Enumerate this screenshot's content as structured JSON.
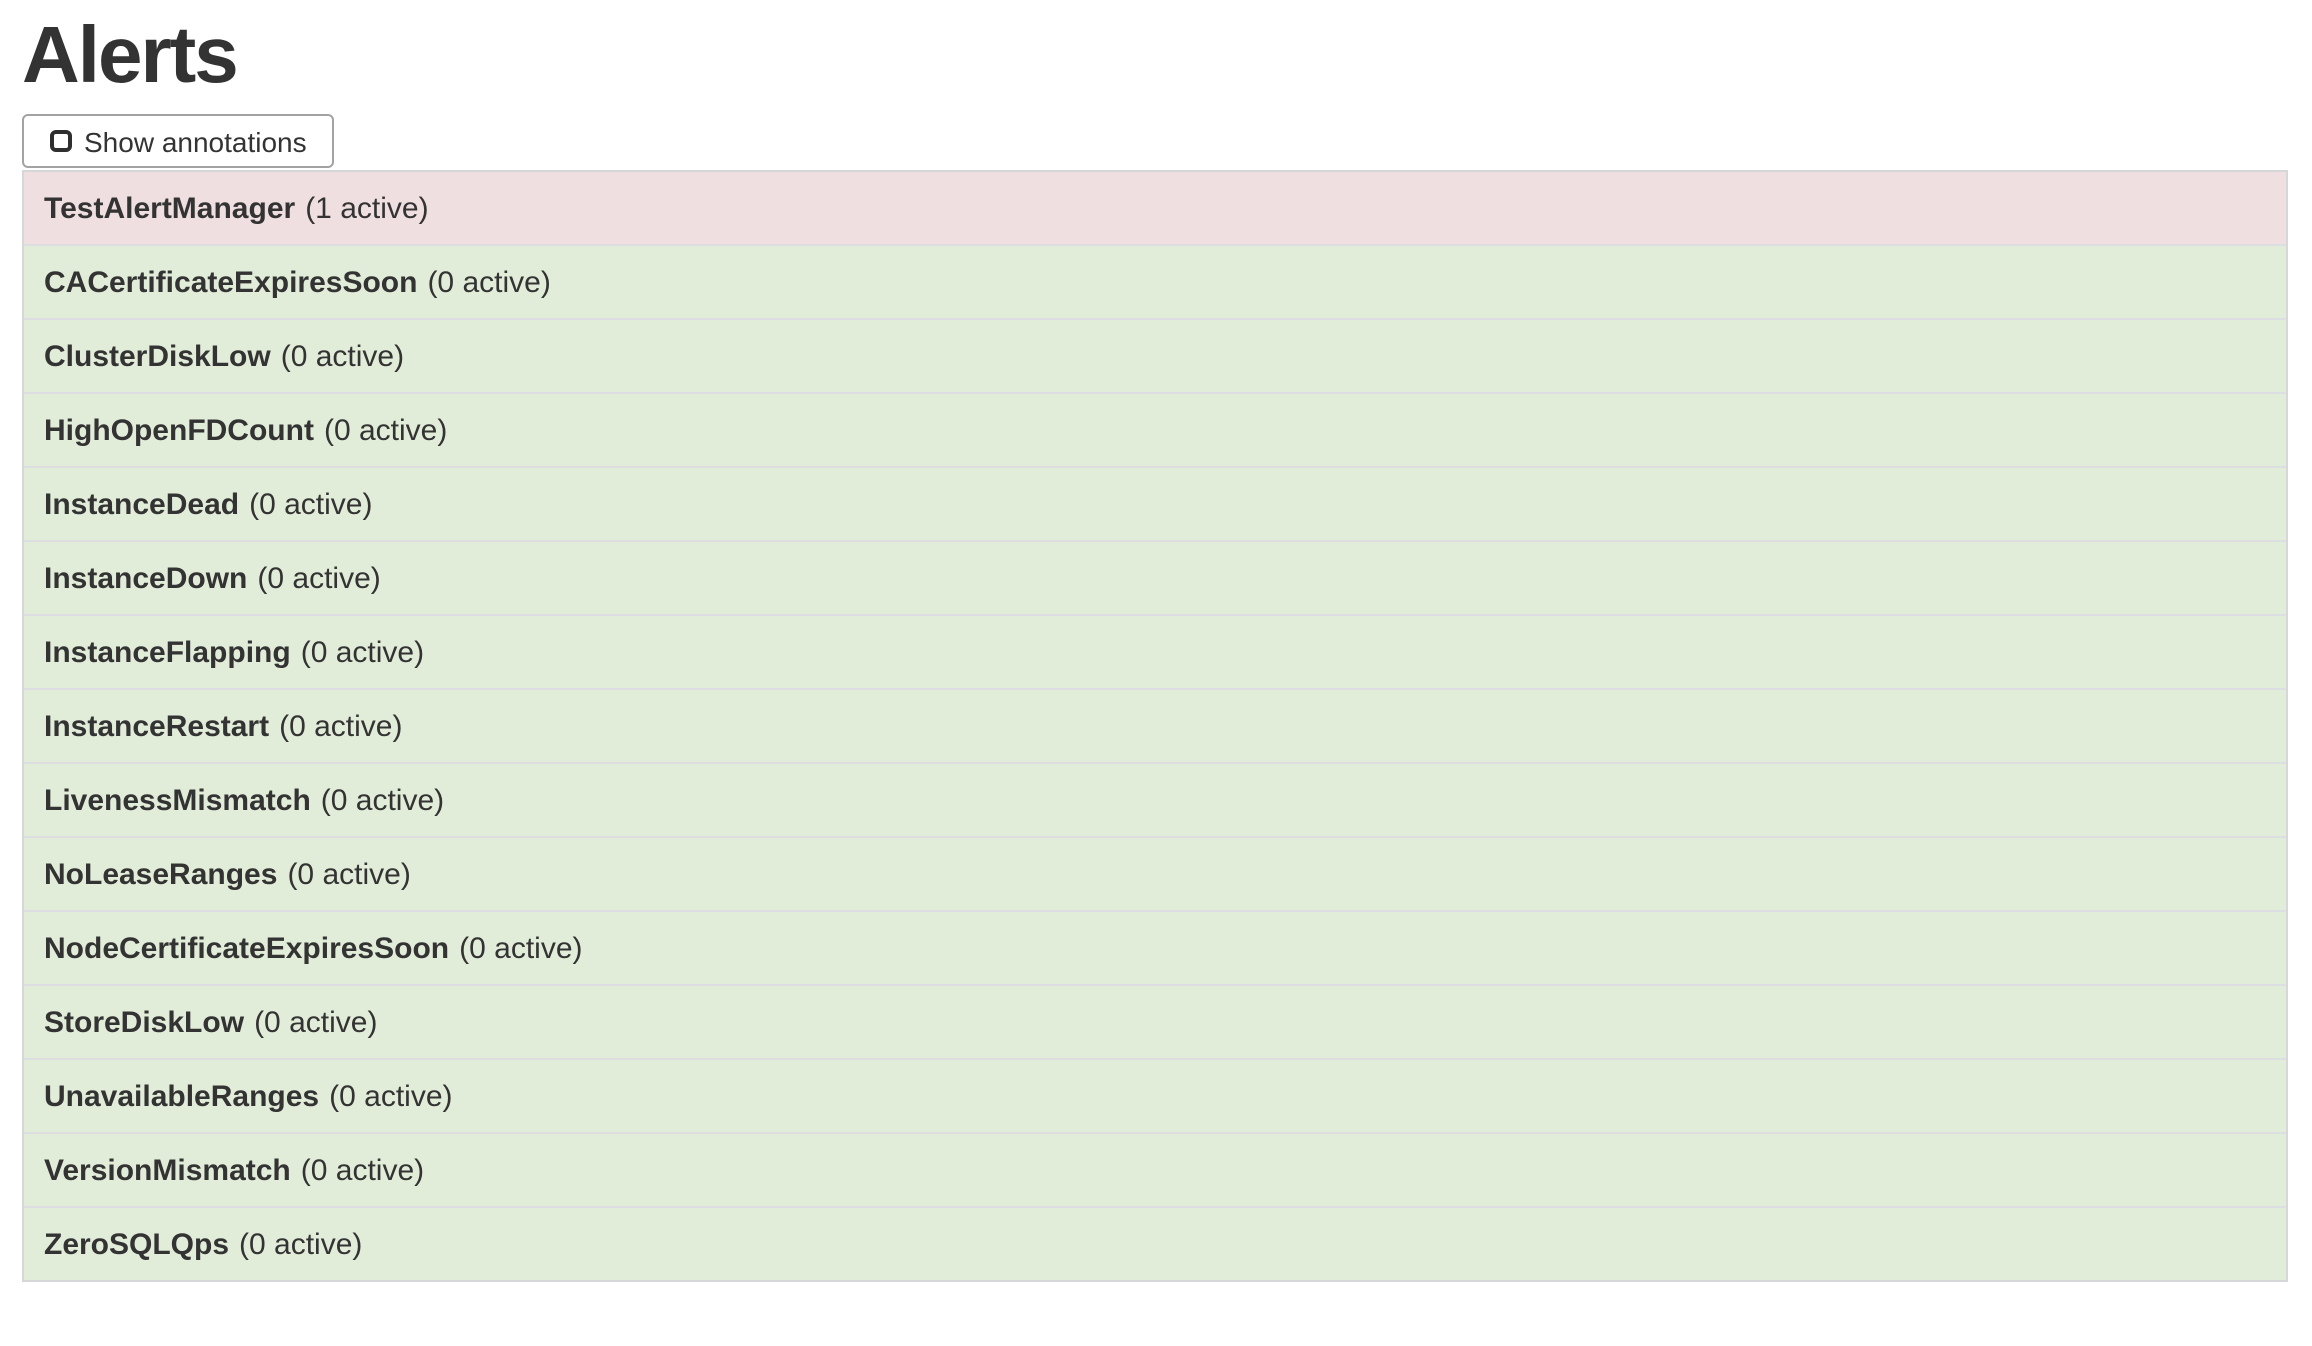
{
  "page": {
    "title": "Alerts"
  },
  "toolbar": {
    "show_annotations": {
      "label": "Show annotations",
      "checked": false
    }
  },
  "alerts": [
    {
      "name": "TestAlertManager",
      "count_label": "(1 active)",
      "active_count": 1,
      "status": "firing"
    },
    {
      "name": "CACertificateExpiresSoon",
      "count_label": "(0 active)",
      "active_count": 0,
      "status": "inactive"
    },
    {
      "name": "ClusterDiskLow",
      "count_label": "(0 active)",
      "active_count": 0,
      "status": "inactive"
    },
    {
      "name": "HighOpenFDCount",
      "count_label": "(0 active)",
      "active_count": 0,
      "status": "inactive"
    },
    {
      "name": "InstanceDead",
      "count_label": "(0 active)",
      "active_count": 0,
      "status": "inactive"
    },
    {
      "name": "InstanceDown",
      "count_label": "(0 active)",
      "active_count": 0,
      "status": "inactive"
    },
    {
      "name": "InstanceFlapping",
      "count_label": "(0 active)",
      "active_count": 0,
      "status": "inactive"
    },
    {
      "name": "InstanceRestart",
      "count_label": "(0 active)",
      "active_count": 0,
      "status": "inactive"
    },
    {
      "name": "LivenessMismatch",
      "count_label": "(0 active)",
      "active_count": 0,
      "status": "inactive"
    },
    {
      "name": "NoLeaseRanges",
      "count_label": "(0 active)",
      "active_count": 0,
      "status": "inactive"
    },
    {
      "name": "NodeCertificateExpiresSoon",
      "count_label": "(0 active)",
      "active_count": 0,
      "status": "inactive"
    },
    {
      "name": "StoreDiskLow",
      "count_label": "(0 active)",
      "active_count": 0,
      "status": "inactive"
    },
    {
      "name": "UnavailableRanges",
      "count_label": "(0 active)",
      "active_count": 0,
      "status": "inactive"
    },
    {
      "name": "VersionMismatch",
      "count_label": "(0 active)",
      "active_count": 0,
      "status": "inactive"
    },
    {
      "name": "ZeroSQLQps",
      "count_label": "(0 active)",
      "active_count": 0,
      "status": "inactive"
    }
  ],
  "colors": {
    "firing_bg": "#efdfe0",
    "inactive_bg": "#e2edd9",
    "text": "#333333",
    "row_divider": "#dddee2",
    "list_border": "#d6d7d9",
    "button_border": "#a3a3a3"
  }
}
